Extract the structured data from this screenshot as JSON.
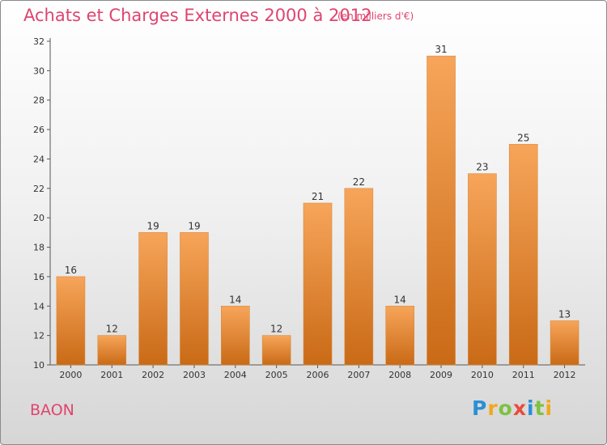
{
  "header": {
    "title": "Achats et Charges Externes 2000 à 2012",
    "subtitle": "(en milliers d'€)"
  },
  "footer": {
    "commune": "BAON",
    "logo": {
      "letters": [
        "P",
        "r",
        "o",
        "x",
        "i",
        "t",
        "i"
      ],
      "colors": [
        "#2a8fd6",
        "#f2a81d",
        "#7cc242",
        "#e84c3d",
        "#2a8fd6",
        "#7cc242",
        "#f2a81d"
      ]
    }
  },
  "colors": {
    "title": "#e0446e",
    "bar_light": "#f7a55a",
    "bar_dark": "#c96a16"
  },
  "chart_data": {
    "type": "bar",
    "title": "Achats et Charges Externes 2000 à 2012",
    "subtitle": "(en milliers d'€)",
    "categories": [
      "2000",
      "2001",
      "2002",
      "2003",
      "2004",
      "2005",
      "2006",
      "2007",
      "2008",
      "2009",
      "2010",
      "2011",
      "2012"
    ],
    "values": [
      16,
      12,
      19,
      19,
      14,
      12,
      21,
      22,
      14,
      31,
      23,
      25,
      13
    ],
    "ylim": [
      10,
      32
    ],
    "yticks": [
      10,
      12,
      14,
      16,
      18,
      20,
      22,
      24,
      26,
      28,
      30,
      32
    ],
    "grid": false,
    "legend": "none"
  }
}
